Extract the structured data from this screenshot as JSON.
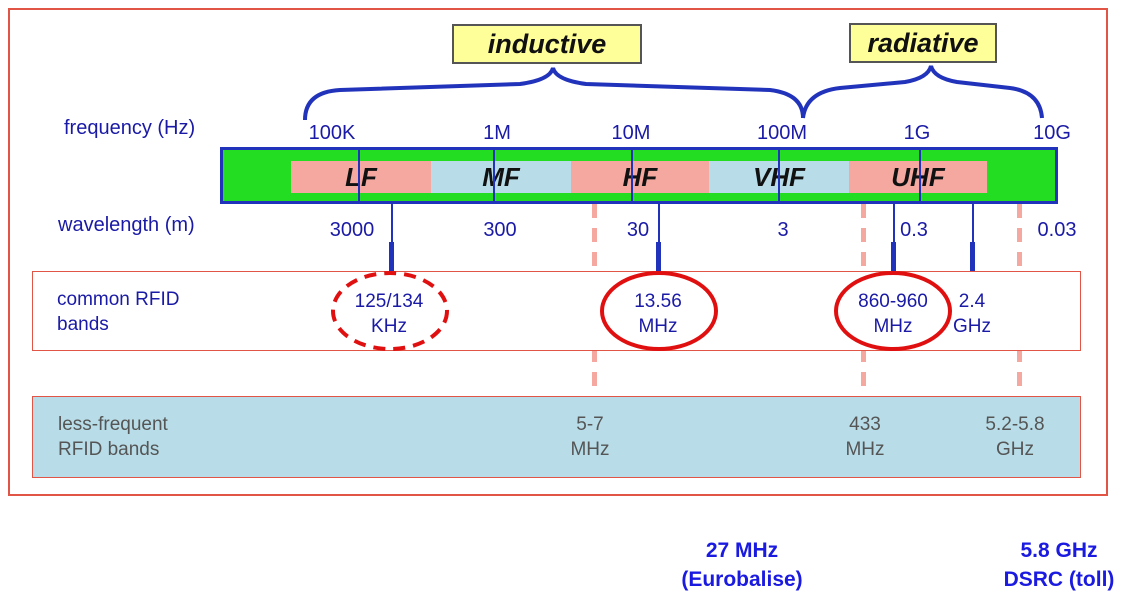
{
  "labels": {
    "inductive": "inductive",
    "radiative": "radiative",
    "frequency": "frequency (Hz)",
    "wavelength": "wavelength (m)",
    "common_rfid": [
      "common RFID",
      "bands"
    ],
    "less_frequent": [
      "less-frequent",
      "RFID bands"
    ]
  },
  "frequency_ticks": [
    "100K",
    "1M",
    "10M",
    "100M",
    "1G",
    "10G"
  ],
  "wavelength_ticks": [
    "3000",
    "300",
    "30",
    "3",
    "0.3",
    "0.03"
  ],
  "bands": [
    {
      "name": "LF",
      "color": "#f4a8a0"
    },
    {
      "name": "MF",
      "color": "#b8dde8"
    },
    {
      "name": "HF",
      "color": "#f4a8a0"
    },
    {
      "name": "VHF",
      "color": "#b8dde8"
    },
    {
      "name": "UHF",
      "color": "#f4a8a0"
    }
  ],
  "common_bands": [
    {
      "line1": "125/134",
      "line2": "KHz"
    },
    {
      "line1": "13.56",
      "line2": "MHz"
    },
    {
      "line1": "860-960",
      "line2": "MHz"
    },
    {
      "line1": "2.4",
      "line2": "GHz"
    }
  ],
  "less_frequent_bands": [
    {
      "line1": "5-7",
      "line2": "MHz"
    },
    {
      "line1": "433",
      "line2": "MHz"
    },
    {
      "line1": "5.2-5.8",
      "line2": "GHz"
    }
  ],
  "extra_bands": [
    {
      "line1": "27 MHz",
      "line2": "(Eurobalise)"
    },
    {
      "line1": "5.8 GHz",
      "line2": "DSRC (toll)"
    }
  ],
  "colors": {
    "frame_red": "#e05545",
    "bar_green": "#22dd22",
    "bar_border": "#2233bb",
    "label_blue": "#1a1aa6",
    "bottom_blue": "#1a1ae0",
    "tag_yellow": "#ffff99",
    "light_blue": "#b8dde8",
    "salmon": "#f4a8a0",
    "circle_red": "#e01010"
  }
}
